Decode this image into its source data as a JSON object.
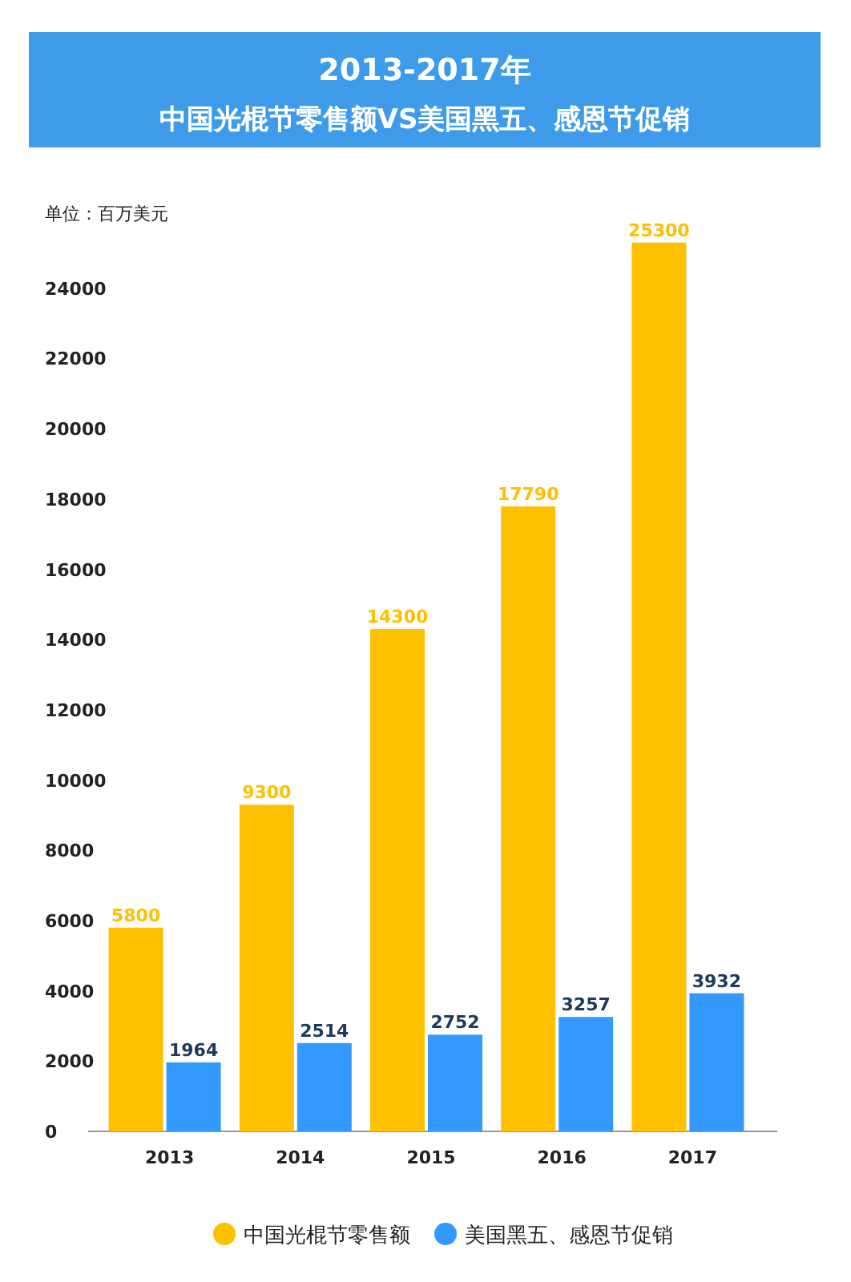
{
  "chart_data": {
    "type": "bar",
    "title": "2013-2017年",
    "subtitle": "中国光棍节零售额VS美国黑五、感恩节促销",
    "ylabel": "单位：百万美元",
    "categories": [
      "2013",
      "2014",
      "2015",
      "2016",
      "2017"
    ],
    "series": [
      {
        "name": "中国光棍节零售额",
        "color": "#ffc000",
        "values": [
          5800,
          9300,
          14300,
          17790,
          25300
        ]
      },
      {
        "name": "美国黑五、感恩节促销",
        "color": "#3399ff",
        "values": [
          1964,
          2514,
          2752,
          3257,
          3932
        ]
      }
    ],
    "ylim": [
      0,
      25500
    ],
    "yticks": [
      0,
      2000,
      4000,
      6000,
      8000,
      10000,
      12000,
      14000,
      16000,
      18000,
      20000,
      22000,
      24000
    ],
    "data_labels": true,
    "grid": false,
    "legend": "bottom"
  }
}
